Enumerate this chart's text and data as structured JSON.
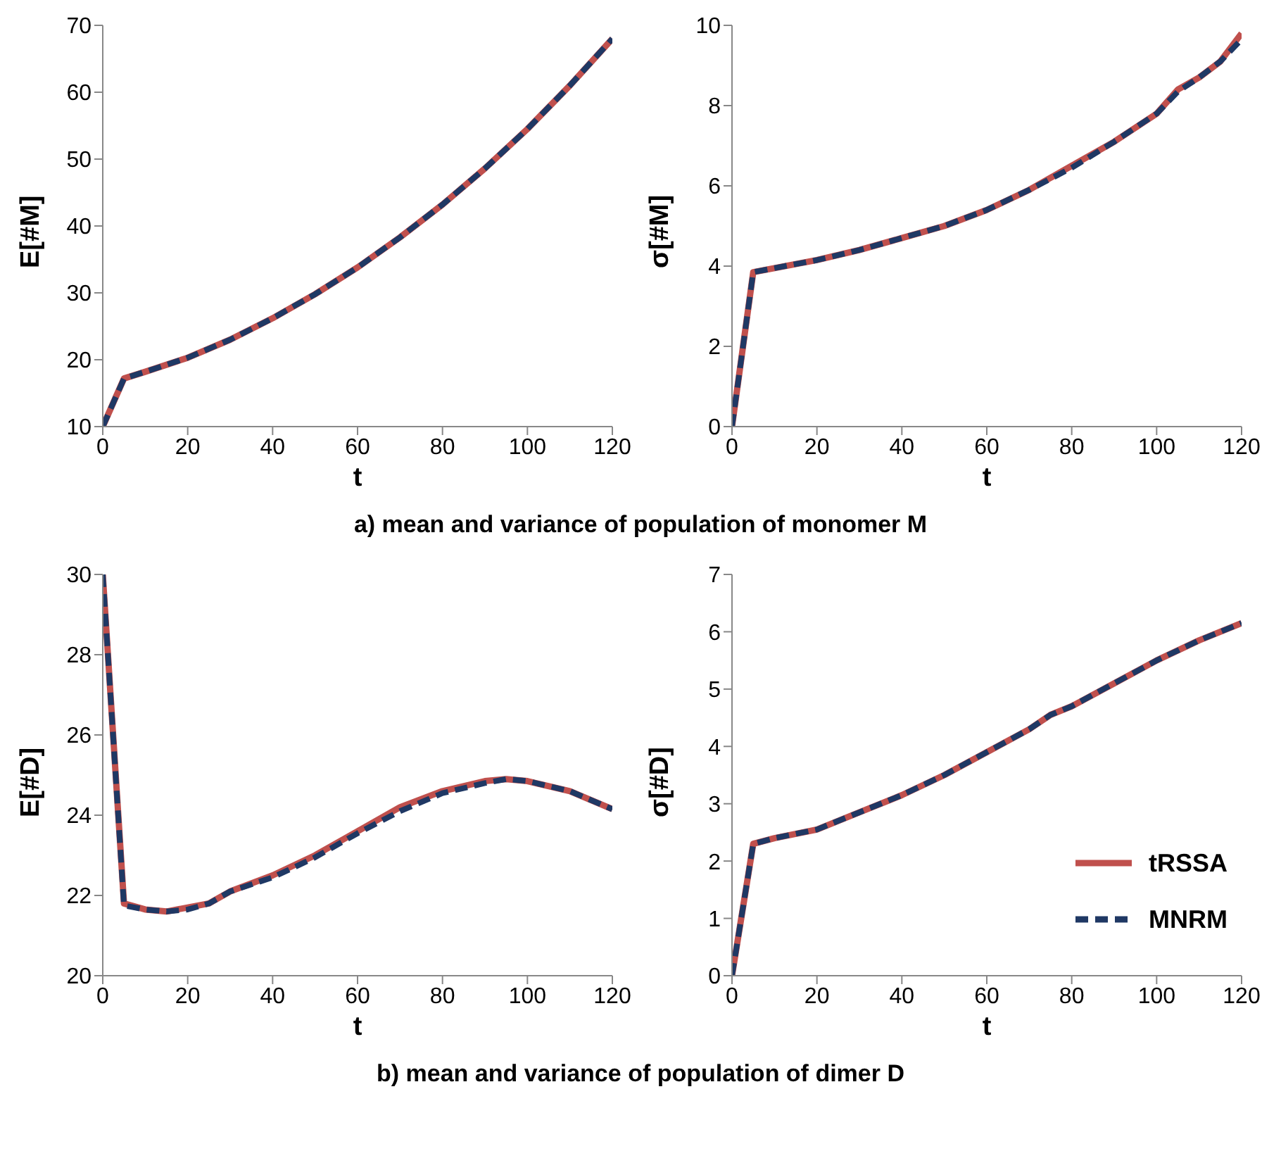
{
  "chart_data": [
    {
      "type": "line",
      "xlabel": "t",
      "ylabel": "E[#M]",
      "x": [
        0,
        5,
        10,
        20,
        30,
        40,
        50,
        60,
        70,
        80,
        90,
        100,
        110,
        120
      ],
      "xlim": [
        0,
        120
      ],
      "xticks": [
        0,
        20,
        40,
        60,
        80,
        100,
        120
      ],
      "ylim": [
        10,
        70
      ],
      "yticks": [
        10,
        20,
        30,
        40,
        50,
        60,
        70
      ],
      "marker": "none",
      "legend": false,
      "series": [
        {
          "color": "#c0504d",
          "line_style": "solid",
          "values": [
            10,
            17.2,
            18.2,
            20.3,
            23,
            26.2,
            29.8,
            33.8,
            38.3,
            43.2,
            48.6,
            54.5,
            61,
            68
          ]
        },
        {
          "color": "#1f3864",
          "line_style": "dashed",
          "values": [
            10,
            17.2,
            18.2,
            20.3,
            23,
            26.2,
            29.8,
            33.8,
            38.3,
            43.2,
            48.6,
            54.5,
            61,
            68
          ]
        }
      ]
    },
    {
      "type": "line",
      "xlabel": "t",
      "ylabel": "σ[#M]",
      "x": [
        0,
        5,
        10,
        20,
        30,
        40,
        50,
        60,
        70,
        80,
        90,
        100,
        105,
        110,
        115,
        120
      ],
      "xlim": [
        0,
        120
      ],
      "xticks": [
        0,
        20,
        40,
        60,
        80,
        100,
        120
      ],
      "ylim": [
        0,
        10
      ],
      "yticks": [
        0,
        2,
        4,
        6,
        8,
        10
      ],
      "marker": "none",
      "legend": false,
      "annotations": [
        "a) mean and variance of population of monomer M"
      ],
      "series": [
        {
          "color": "#c0504d",
          "line_style": "solid",
          "values": [
            0,
            3.85,
            3.95,
            4.15,
            4.4,
            4.7,
            5,
            5.4,
            5.9,
            6.5,
            7.1,
            7.8,
            8.4,
            8.7,
            9.1,
            9.8
          ]
        },
        {
          "color": "#1f3864",
          "line_style": "dashed",
          "values": [
            0,
            3.85,
            3.95,
            4.15,
            4.4,
            4.7,
            5,
            5.4,
            5.9,
            6.45,
            7.1,
            7.8,
            8.35,
            8.7,
            9.1,
            9.65
          ]
        }
      ]
    },
    {
      "type": "line",
      "xlabel": "t",
      "ylabel": "E[#D]",
      "x": [
        0,
        5,
        10,
        15,
        20,
        25,
        30,
        40,
        50,
        60,
        70,
        80,
        90,
        95,
        100,
        110,
        120
      ],
      "xlim": [
        0,
        120
      ],
      "xticks": [
        0,
        20,
        40,
        60,
        80,
        100,
        120
      ],
      "ylim": [
        20,
        30
      ],
      "yticks": [
        20,
        22,
        24,
        26,
        28,
        30
      ],
      "marker": "none",
      "legend": false,
      "series": [
        {
          "color": "#c0504d",
          "line_style": "solid",
          "values": [
            30,
            21.8,
            21.65,
            21.6,
            21.7,
            21.8,
            22.1,
            22.5,
            23.0,
            23.6,
            24.2,
            24.6,
            24.85,
            24.9,
            24.85,
            24.6,
            24.15
          ]
        },
        {
          "color": "#1f3864",
          "line_style": "dashed",
          "values": [
            30,
            21.75,
            21.65,
            21.6,
            21.65,
            21.8,
            22.1,
            22.45,
            22.95,
            23.55,
            24.1,
            24.55,
            24.8,
            24.9,
            24.85,
            24.6,
            24.15
          ]
        }
      ]
    },
    {
      "type": "line",
      "xlabel": "t",
      "ylabel": "σ[#D]",
      "x": [
        0,
        5,
        10,
        20,
        30,
        40,
        50,
        60,
        70,
        75,
        80,
        90,
        100,
        110,
        120
      ],
      "xlim": [
        0,
        120
      ],
      "xticks": [
        0,
        20,
        40,
        60,
        80,
        100,
        120
      ],
      "ylim": [
        0,
        7
      ],
      "yticks": [
        0,
        1,
        2,
        3,
        4,
        5,
        6,
        7
      ],
      "marker": "none",
      "legend": "bottom right",
      "annotations": [
        "b) mean and variance of population of dimer D"
      ],
      "series": [
        {
          "name": "tRSSA",
          "color": "#c0504d",
          "line_style": "solid",
          "values": [
            0,
            2.3,
            2.4,
            2.55,
            2.85,
            3.15,
            3.5,
            3.9,
            4.3,
            4.55,
            4.7,
            5.1,
            5.5,
            5.85,
            6.15
          ]
        },
        {
          "name": "MNRM",
          "color": "#1f3864",
          "line_style": "dashed",
          "values": [
            0,
            2.3,
            2.4,
            2.55,
            2.85,
            3.15,
            3.5,
            3.9,
            4.3,
            4.55,
            4.7,
            5.1,
            5.5,
            5.85,
            6.15
          ]
        }
      ]
    }
  ]
}
